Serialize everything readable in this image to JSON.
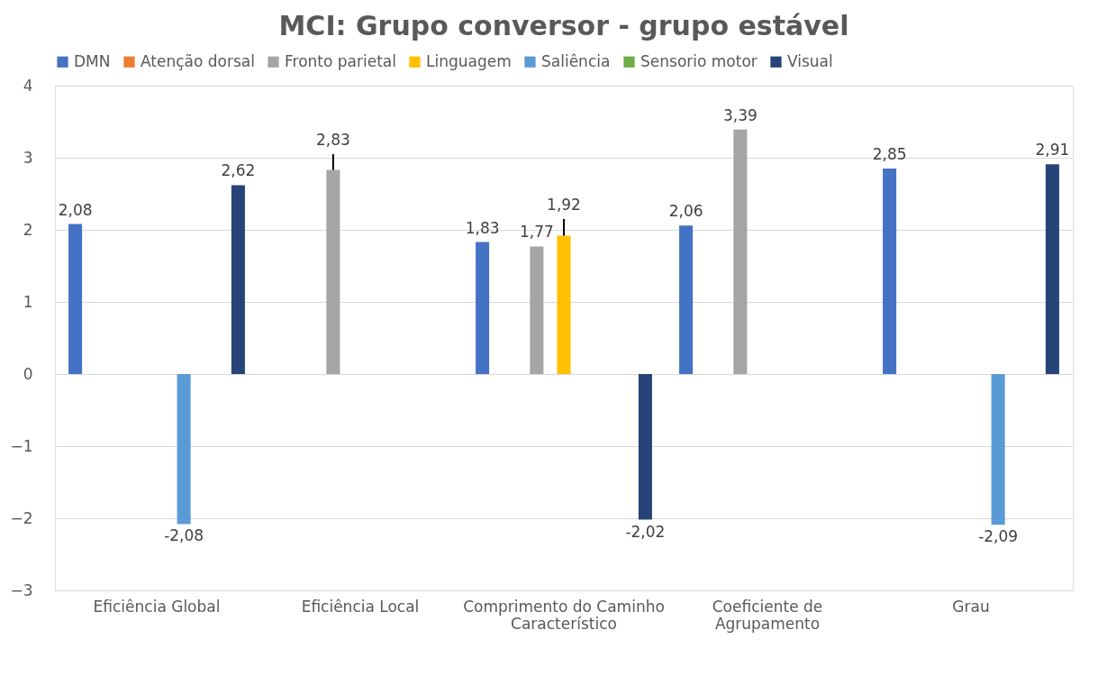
{
  "chart_data": {
    "type": "bar",
    "title": "MCI: Grupo conversor - grupo estável",
    "categories": [
      "Eficiência Global",
      "Eficiência Local",
      "Comprimento do Caminho Característico",
      "Coeficiente de Agrupamento",
      "Grau"
    ],
    "series": [
      {
        "name": "DMN",
        "color": "#4472c4",
        "values": [
          2.08,
          null,
          1.83,
          2.06,
          2.85
        ],
        "value_labels": [
          "2,08",
          null,
          "1,83",
          "2,06",
          "2,85"
        ]
      },
      {
        "name": "Atenção dorsal",
        "color": "#ed7d31",
        "values": [
          null,
          null,
          null,
          null,
          null
        ],
        "value_labels": [
          null,
          null,
          null,
          null,
          null
        ]
      },
      {
        "name": "Fronto parietal",
        "color": "#a5a5a5",
        "values": [
          null,
          2.83,
          1.77,
          3.39,
          null
        ],
        "value_labels": [
          null,
          "2,83",
          "1,77",
          "3,39",
          null
        ],
        "errors": [
          null,
          [
            2.83,
            3.05
          ],
          null,
          null,
          null
        ]
      },
      {
        "name": "Linguagem",
        "color": "#ffc000",
        "values": [
          null,
          null,
          1.92,
          null,
          null
        ],
        "value_labels": [
          null,
          null,
          "1,92",
          null,
          null
        ],
        "errors": [
          null,
          null,
          [
            1.92,
            2.15
          ],
          null,
          null
        ]
      },
      {
        "name": "Saliência",
        "color": "#5b9bd5",
        "values": [
          -2.08,
          null,
          null,
          null,
          -2.09
        ],
        "value_labels": [
          "-2,08",
          null,
          null,
          null,
          "-2,09"
        ]
      },
      {
        "name": "Sensorio motor",
        "color": "#70ad47",
        "values": [
          null,
          null,
          null,
          null,
          null
        ],
        "value_labels": [
          null,
          null,
          null,
          null,
          null
        ]
      },
      {
        "name": "Visual",
        "color": "#264478",
        "values": [
          2.62,
          null,
          -2.02,
          null,
          2.91
        ],
        "value_labels": [
          "2,62",
          null,
          "-2,02",
          null,
          "2,91"
        ]
      }
    ],
    "ylim": [
      -3,
      4
    ],
    "yticks": [
      -3,
      -2,
      -1,
      0,
      1,
      2,
      3,
      4
    ],
    "grid": "y",
    "legend": "top"
  }
}
